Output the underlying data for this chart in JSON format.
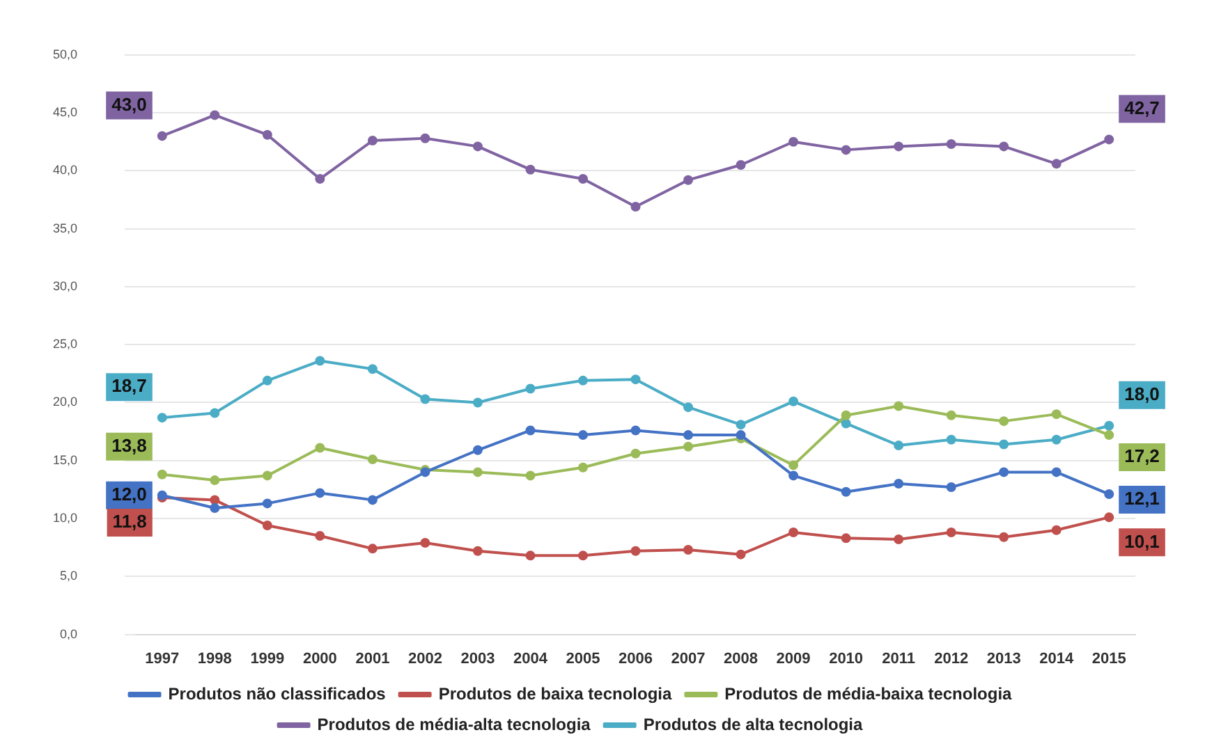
{
  "chart_data": {
    "type": "line",
    "categories": [
      "1997",
      "1998",
      "1999",
      "2000",
      "2001",
      "2002",
      "2003",
      "2004",
      "2005",
      "2006",
      "2007",
      "2008",
      "2009",
      "2010",
      "2011",
      "2012",
      "2013",
      "2014",
      "2015"
    ],
    "series": [
      {
        "name": "Produtos não classificados",
        "color": "#4472c4",
        "values": [
          12.0,
          10.9,
          11.3,
          12.2,
          11.6,
          14.0,
          15.9,
          17.6,
          17.2,
          17.6,
          17.2,
          17.2,
          13.7,
          12.3,
          13.0,
          12.7,
          14.0,
          14.0,
          12.1
        ],
        "value_labels": [
          "12,0",
          null,
          null,
          null,
          null,
          null,
          null,
          null,
          null,
          null,
          null,
          null,
          null,
          null,
          null,
          null,
          null,
          null,
          "12,1"
        ]
      },
      {
        "name": "Produtos de baixa tecnologia",
        "color": "#c0504d",
        "values": [
          11.8,
          11.6,
          9.4,
          8.5,
          7.4,
          7.9,
          7.2,
          6.8,
          6.8,
          7.2,
          7.3,
          6.9,
          8.8,
          8.3,
          8.2,
          8.8,
          8.4,
          9.0,
          10.1
        ],
        "value_labels": [
          "11,8",
          null,
          null,
          null,
          null,
          null,
          null,
          null,
          null,
          null,
          null,
          null,
          null,
          null,
          null,
          null,
          null,
          null,
          "10,1"
        ]
      },
      {
        "name": "Produtos de média-baixa tecnologia",
        "color": "#9bbb59",
        "values": [
          13.8,
          13.3,
          13.7,
          16.1,
          15.1,
          14.2,
          14.0,
          13.7,
          14.4,
          15.6,
          16.2,
          16.9,
          14.6,
          18.9,
          19.7,
          18.9,
          18.4,
          19.0,
          17.2
        ],
        "value_labels": [
          "13,8",
          null,
          null,
          null,
          null,
          null,
          null,
          null,
          null,
          null,
          null,
          null,
          null,
          null,
          null,
          null,
          null,
          null,
          "17,2"
        ]
      },
      {
        "name": "Produtos de média-alta tecnologia",
        "color": "#8064a2",
        "values": [
          43.0,
          44.8,
          43.1,
          39.3,
          42.6,
          42.8,
          42.1,
          40.1,
          39.3,
          36.9,
          39.2,
          40.5,
          42.5,
          41.8,
          42.1,
          42.3,
          42.1,
          40.6,
          42.7
        ],
        "value_labels": [
          "43,0",
          null,
          null,
          null,
          null,
          null,
          null,
          null,
          null,
          null,
          null,
          null,
          null,
          null,
          null,
          null,
          null,
          null,
          "42,7"
        ]
      },
      {
        "name": "Produtos de alta tecnologia",
        "color": "#4bacc6",
        "values": [
          18.7,
          19.1,
          21.9,
          23.6,
          22.9,
          20.3,
          20.0,
          21.2,
          21.9,
          22.0,
          19.6,
          18.1,
          20.1,
          18.2,
          16.3,
          16.8,
          16.4,
          16.8,
          18.0
        ],
        "value_labels": [
          "18,7",
          null,
          null,
          null,
          null,
          null,
          null,
          null,
          null,
          null,
          null,
          null,
          null,
          null,
          null,
          null,
          null,
          null,
          "18,0"
        ]
      }
    ],
    "ylim": [
      0,
      50
    ],
    "yticks": [
      {
        "value": 0,
        "label": "0,0"
      },
      {
        "value": 5,
        "label": "5,0"
      },
      {
        "value": 10,
        "label": "10,0"
      },
      {
        "value": 15,
        "label": "15,0"
      },
      {
        "value": 20,
        "label": "20,0"
      },
      {
        "value": 25,
        "label": "25,0"
      },
      {
        "value": 30,
        "label": "30,0"
      },
      {
        "value": 35,
        "label": "35,0"
      },
      {
        "value": 40,
        "label": "40,0"
      },
      {
        "value": 45,
        "label": "45,0"
      },
      {
        "value": 50,
        "label": "50,0"
      }
    ],
    "grid": "y",
    "legend": "bottom",
    "marker": "circle",
    "line_style": "solid"
  }
}
